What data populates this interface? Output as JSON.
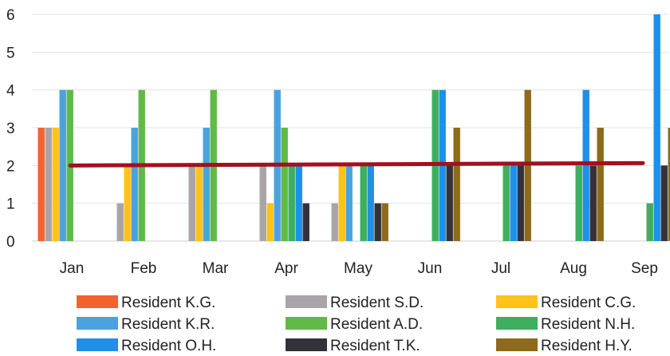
{
  "chart_data": {
    "type": "bar",
    "categories": [
      "Jan",
      "Feb",
      "Mar",
      "Apr",
      "May",
      "Jun",
      "Jul",
      "Aug",
      "Sep"
    ],
    "y_ticks": [
      "0",
      "1",
      "2",
      "3",
      "4",
      "5",
      "6"
    ],
    "ylim": [
      0,
      6
    ],
    "grid": true,
    "legend_position": "bottom",
    "series": [
      {
        "name": "Resident K.G.",
        "color": "#f4632b",
        "values": [
          3,
          0,
          0,
          0,
          0,
          0,
          0,
          0,
          0
        ]
      },
      {
        "name": "Resident S.D.",
        "color": "#a9a4a8",
        "values": [
          3,
          1,
          2,
          2,
          1,
          0,
          0,
          0,
          0
        ]
      },
      {
        "name": "Resident C.G.",
        "color": "#ffc21a",
        "values": [
          3,
          2,
          2,
          1,
          2,
          0,
          0,
          0,
          0
        ]
      },
      {
        "name": "Resident K.R.",
        "color": "#4aa3df",
        "values": [
          4,
          3,
          3,
          4,
          2,
          0,
          0,
          0,
          0
        ]
      },
      {
        "name": "Resident A.D.",
        "color": "#62b947",
        "values": [
          4,
          4,
          4,
          3,
          0,
          0,
          0,
          0,
          0
        ]
      },
      {
        "name": "Resident N.H.",
        "color": "#3fae5f",
        "values": [
          0,
          0,
          0,
          2,
          2,
          4,
          2,
          2,
          1
        ]
      },
      {
        "name": "Resident O.H.",
        "color": "#1e90e8",
        "values": [
          0,
          0,
          0,
          2,
          2,
          4,
          2,
          4,
          6
        ]
      },
      {
        "name": "Resident T.K.",
        "color": "#33323a",
        "values": [
          0,
          0,
          0,
          1,
          1,
          2,
          2,
          2,
          2
        ]
      },
      {
        "name": "Resident H.Y.",
        "color": "#8e6a1c",
        "values": [
          0,
          0,
          0,
          0,
          1,
          3,
          4,
          3,
          3
        ]
      }
    ],
    "reference_line": {
      "value": 2,
      "color": "#a3101f"
    }
  }
}
